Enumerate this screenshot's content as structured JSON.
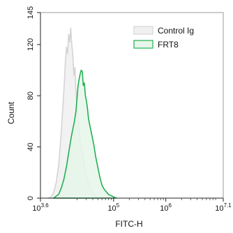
{
  "chart_data": {
    "type": "area",
    "xlabel": "FITC-H",
    "ylabel": "Count",
    "xscale": "log",
    "xlim": [
      3.6,
      7.1
    ],
    "ylim": [
      0,
      145
    ],
    "grid": false,
    "legend_position": "top-right",
    "x_ticks": [
      {
        "exp": 3.6,
        "base": "10",
        "sup": "3.6"
      },
      {
        "exp": 5,
        "base": "10",
        "sup": "5"
      },
      {
        "exp": 6,
        "base": "10",
        "sup": "6"
      },
      {
        "exp": 7.1,
        "base": "10",
        "sup": "7.1"
      }
    ],
    "y_ticks": [
      {
        "value": 0,
        "label": "0"
      },
      {
        "value": 40,
        "label": "40"
      },
      {
        "value": 80,
        "label": "80"
      },
      {
        "value": 120,
        "label": "120"
      },
      {
        "value": 145,
        "label": "145"
      }
    ],
    "series": [
      {
        "name": "Control Ig",
        "stroke": "#d4d4d4",
        "fill": "#f0f0f0",
        "points": [
          [
            3.75,
            0
          ],
          [
            3.8,
            1
          ],
          [
            3.85,
            4
          ],
          [
            3.9,
            12
          ],
          [
            3.95,
            26
          ],
          [
            4.0,
            52
          ],
          [
            4.05,
            85
          ],
          [
            4.08,
            108
          ],
          [
            4.1,
            118
          ],
          [
            4.12,
            113
          ],
          [
            4.14,
            128
          ],
          [
            4.16,
            122
          ],
          [
            4.18,
            133
          ],
          [
            4.2,
            120
          ],
          [
            4.22,
            112
          ],
          [
            4.24,
            96
          ],
          [
            4.26,
            102
          ],
          [
            4.28,
            84
          ],
          [
            4.3,
            70
          ],
          [
            4.33,
            60
          ],
          [
            4.36,
            44
          ],
          [
            4.4,
            36
          ],
          [
            4.44,
            26
          ],
          [
            4.48,
            18
          ],
          [
            4.52,
            12
          ],
          [
            4.56,
            7
          ],
          [
            4.6,
            4
          ],
          [
            4.65,
            2
          ],
          [
            4.7,
            0
          ]
        ]
      },
      {
        "name": "FRT8",
        "stroke": "#22b052",
        "fill": "#e6f6ea",
        "points": [
          [
            3.85,
            0
          ],
          [
            3.95,
            3
          ],
          [
            4.0,
            8
          ],
          [
            4.05,
            15
          ],
          [
            4.1,
            25
          ],
          [
            4.15,
            38
          ],
          [
            4.2,
            50
          ],
          [
            4.25,
            60
          ],
          [
            4.28,
            68
          ],
          [
            4.3,
            78
          ],
          [
            4.32,
            88
          ],
          [
            4.34,
            93
          ],
          [
            4.36,
            97
          ],
          [
            4.38,
            100
          ],
          [
            4.4,
            99
          ],
          [
            4.42,
            88
          ],
          [
            4.44,
            90
          ],
          [
            4.46,
            80
          ],
          [
            4.48,
            76
          ],
          [
            4.5,
            70
          ],
          [
            4.52,
            62
          ],
          [
            4.55,
            56
          ],
          [
            4.58,
            50
          ],
          [
            4.62,
            42
          ],
          [
            4.66,
            32
          ],
          [
            4.7,
            24
          ],
          [
            4.74,
            16
          ],
          [
            4.78,
            10
          ],
          [
            4.82,
            7
          ],
          [
            4.86,
            5
          ],
          [
            4.9,
            3
          ],
          [
            4.95,
            2
          ],
          [
            5.0,
            1
          ],
          [
            5.05,
            0
          ]
        ]
      }
    ]
  }
}
